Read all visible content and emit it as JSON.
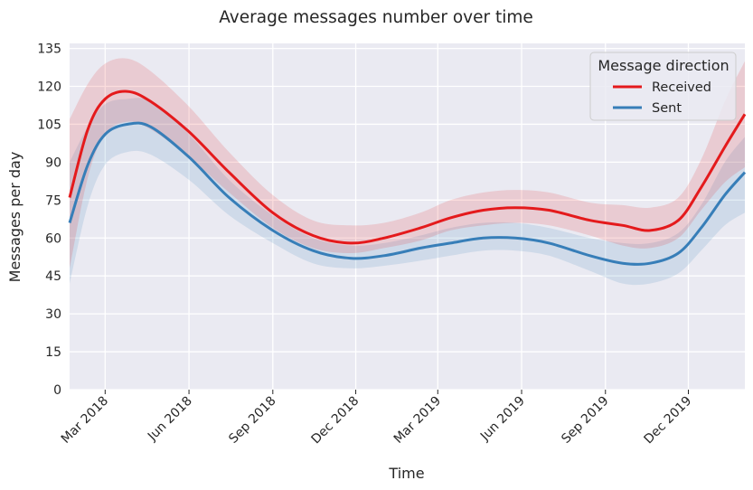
{
  "chart_data": {
    "type": "line",
    "title": "Average messages number over time",
    "xlabel": "Time",
    "ylabel": "Messages per day",
    "x_range": [
      "2018-01-21",
      "2020-02-01"
    ],
    "ylim": [
      0,
      137
    ],
    "y_ticks": [
      0,
      15,
      30,
      45,
      60,
      75,
      90,
      105,
      120,
      135
    ],
    "x_ticks": [
      {
        "date": "2018-03-01",
        "label": "Mar 2018"
      },
      {
        "date": "2018-06-01",
        "label": "Jun 2018"
      },
      {
        "date": "2018-09-01",
        "label": "Sep 2018"
      },
      {
        "date": "2018-12-01",
        "label": "Dec 2018"
      },
      {
        "date": "2019-03-01",
        "label": "Mar 2019"
      },
      {
        "date": "2019-06-01",
        "label": "Jun 2019"
      },
      {
        "date": "2019-09-01",
        "label": "Sep 2019"
      },
      {
        "date": "2019-12-01",
        "label": "Dec 2019"
      }
    ],
    "grid": true,
    "legend": {
      "title": "Message direction",
      "position": "top-right"
    },
    "series": [
      {
        "name": "Received",
        "color": "#e41a1c",
        "points": [
          {
            "x": "2018-01-21",
            "y": 76,
            "lo": 48,
            "hi": 107
          },
          {
            "x": "2018-02-10",
            "y": 103,
            "lo": 84,
            "hi": 121
          },
          {
            "x": "2018-03-01",
            "y": 115,
            "lo": 101,
            "hi": 129
          },
          {
            "x": "2018-03-25",
            "y": 118,
            "lo": 106,
            "hi": 131
          },
          {
            "x": "2018-04-20",
            "y": 114,
            "lo": 103,
            "hi": 126
          },
          {
            "x": "2018-06-01",
            "y": 102,
            "lo": 92,
            "hi": 112
          },
          {
            "x": "2018-07-15",
            "y": 86,
            "lo": 78,
            "hi": 94
          },
          {
            "x": "2018-09-01",
            "y": 70,
            "lo": 64,
            "hi": 77
          },
          {
            "x": "2018-10-15",
            "y": 61,
            "lo": 56,
            "hi": 67
          },
          {
            "x": "2018-11-25",
            "y": 58,
            "lo": 54,
            "hi": 65
          },
          {
            "x": "2019-01-01",
            "y": 60,
            "lo": 56,
            "hi": 66
          },
          {
            "x": "2019-02-10",
            "y": 64,
            "lo": 59,
            "hi": 70
          },
          {
            "x": "2019-03-15",
            "y": 68,
            "lo": 63,
            "hi": 75
          },
          {
            "x": "2019-04-20",
            "y": 71,
            "lo": 65,
            "hi": 78
          },
          {
            "x": "2019-05-25",
            "y": 72,
            "lo": 66,
            "hi": 79
          },
          {
            "x": "2019-07-01",
            "y": 71,
            "lo": 65,
            "hi": 78
          },
          {
            "x": "2019-08-15",
            "y": 67,
            "lo": 61,
            "hi": 74
          },
          {
            "x": "2019-09-20",
            "y": 65,
            "lo": 57,
            "hi": 73
          },
          {
            "x": "2019-10-20",
            "y": 63,
            "lo": 56,
            "hi": 72
          },
          {
            "x": "2019-11-20",
            "y": 67,
            "lo": 60,
            "hi": 76
          },
          {
            "x": "2019-12-15",
            "y": 80,
            "lo": 71,
            "hi": 91
          },
          {
            "x": "2020-01-10",
            "y": 96,
            "lo": 82,
            "hi": 114
          },
          {
            "x": "2020-02-01",
            "y": 109,
            "lo": 88,
            "hi": 130
          }
        ]
      },
      {
        "name": "Sent",
        "color": "#377eb8",
        "points": [
          {
            "x": "2018-01-21",
            "y": 66,
            "lo": 42,
            "hi": 90
          },
          {
            "x": "2018-02-10",
            "y": 89,
            "lo": 73,
            "hi": 104
          },
          {
            "x": "2018-03-01",
            "y": 101,
            "lo": 89,
            "hi": 113
          },
          {
            "x": "2018-03-25",
            "y": 105,
            "lo": 94,
            "hi": 115
          },
          {
            "x": "2018-04-20",
            "y": 104,
            "lo": 93,
            "hi": 114
          },
          {
            "x": "2018-06-01",
            "y": 92,
            "lo": 83,
            "hi": 101
          },
          {
            "x": "2018-07-15",
            "y": 76,
            "lo": 69,
            "hi": 83
          },
          {
            "x": "2018-09-01",
            "y": 63,
            "lo": 58,
            "hi": 69
          },
          {
            "x": "2018-10-15",
            "y": 55,
            "lo": 50,
            "hi": 60
          },
          {
            "x": "2018-11-25",
            "y": 52,
            "lo": 48,
            "hi": 57
          },
          {
            "x": "2019-01-01",
            "y": 53,
            "lo": 49,
            "hi": 58
          },
          {
            "x": "2019-02-10",
            "y": 56,
            "lo": 51,
            "hi": 61
          },
          {
            "x": "2019-03-15",
            "y": 58,
            "lo": 53,
            "hi": 64
          },
          {
            "x": "2019-04-20",
            "y": 60,
            "lo": 55,
            "hi": 66
          },
          {
            "x": "2019-05-25",
            "y": 60,
            "lo": 55,
            "hi": 66
          },
          {
            "x": "2019-07-01",
            "y": 58,
            "lo": 53,
            "hi": 64
          },
          {
            "x": "2019-08-15",
            "y": 53,
            "lo": 47,
            "hi": 60
          },
          {
            "x": "2019-09-20",
            "y": 50,
            "lo": 42,
            "hi": 58
          },
          {
            "x": "2019-10-20",
            "y": 50,
            "lo": 42,
            "hi": 58
          },
          {
            "x": "2019-11-20",
            "y": 54,
            "lo": 46,
            "hi": 62
          },
          {
            "x": "2019-12-15",
            "y": 64,
            "lo": 55,
            "hi": 73
          },
          {
            "x": "2020-01-10",
            "y": 77,
            "lo": 65,
            "hi": 90
          },
          {
            "x": "2020-02-01",
            "y": 86,
            "lo": 70,
            "hi": 100
          }
        ]
      }
    ]
  }
}
